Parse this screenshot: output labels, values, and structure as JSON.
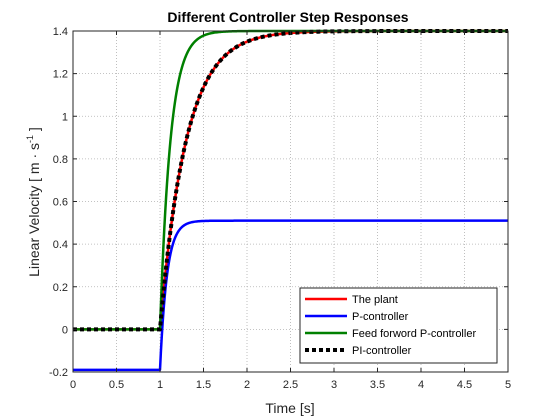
{
  "chart_data": {
    "type": "line",
    "title": "Different Controller Step Responses",
    "xlabel": "Time [s]",
    "ylabel": {
      "main": "Linear Velocity [ m · s",
      "superscript": "-1",
      "close": " ]"
    },
    "xlim": [
      0,
      5
    ],
    "ylim": [
      -0.2,
      1.4
    ],
    "xticks": [
      "0",
      "0.5",
      "1",
      "1.5",
      "2",
      "2.5",
      "3",
      "3.5",
      "4",
      "4.5",
      "5"
    ],
    "yticks": [
      "-0.2",
      "0",
      "0.2",
      "0.4",
      "0.6",
      "0.8",
      "1",
      "1.2",
      "1.4"
    ],
    "grid": true,
    "legend_location": "bottom-right",
    "series": [
      {
        "name": "The plant",
        "color": "#ff0000",
        "style": "solid",
        "step_time": 1,
        "initial": 0,
        "final": 1.4,
        "time_constant": 0.3
      },
      {
        "name": "P-controller",
        "color": "#0000ff",
        "style": "solid",
        "step_time": 1,
        "initial": -0.19,
        "final": 0.51,
        "time_constant": 0.08
      },
      {
        "name": "Feed forword P-controller",
        "color": "#008000",
        "style": "solid",
        "step_time": 1,
        "initial": 0,
        "final": 1.4,
        "time_constant": 0.12
      },
      {
        "name": "PI-controller",
        "color": "#000000",
        "style": "dotted",
        "step_time": 1,
        "initial": 0,
        "final": 1.4,
        "time_constant": 0.3
      }
    ]
  }
}
